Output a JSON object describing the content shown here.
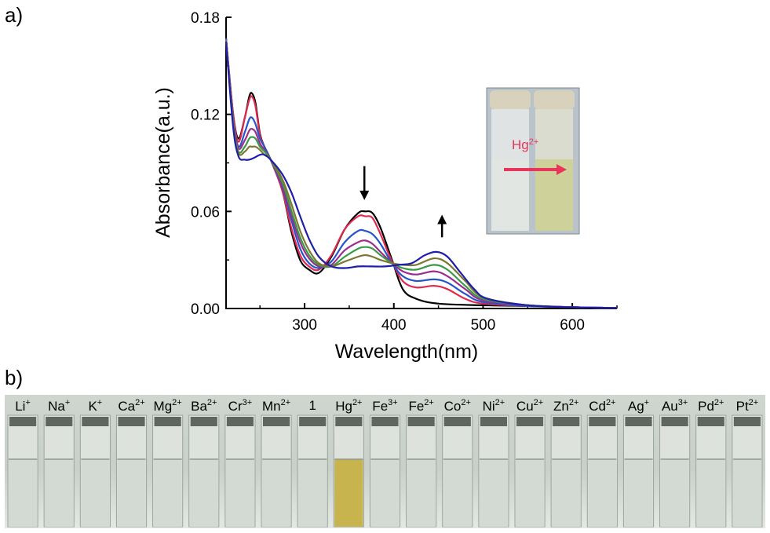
{
  "panel_a_label": "a)",
  "panel_b_label": "b)",
  "chart_data": {
    "type": "line",
    "xlabel": "Wavelength(nm)",
    "ylabel": "Absorbance(a.u.)",
    "xlim": [
      212,
      650
    ],
    "ylim": [
      0,
      0.18
    ],
    "xticks": [
      300,
      400,
      500,
      600
    ],
    "yticks": [
      0.0,
      0.06,
      0.12,
      0.18
    ],
    "ytick_labels": [
      "0.00",
      "0.06",
      "0.12",
      "0.18"
    ],
    "grid": false,
    "legend": "none",
    "series": [
      {
        "color": "#000000",
        "values": [
          [
            212,
            0.167
          ],
          [
            220,
            0.12
          ],
          [
            226,
            0.105
          ],
          [
            233,
            0.118
          ],
          [
            238,
            0.131
          ],
          [
            241,
            0.133
          ],
          [
            245,
            0.127
          ],
          [
            250,
            0.108
          ],
          [
            255,
            0.1
          ],
          [
            262,
            0.092
          ],
          [
            275,
            0.073
          ],
          [
            285,
            0.048
          ],
          [
            295,
            0.03
          ],
          [
            305,
            0.024
          ],
          [
            316,
            0.022
          ],
          [
            330,
            0.032
          ],
          [
            345,
            0.049
          ],
          [
            360,
            0.059
          ],
          [
            368,
            0.06
          ],
          [
            376,
            0.059
          ],
          [
            385,
            0.05
          ],
          [
            398,
            0.03
          ],
          [
            410,
            0.012
          ],
          [
            425,
            0.006
          ],
          [
            450,
            0.003
          ],
          [
            500,
            0.002
          ],
          [
            550,
            0.0015
          ],
          [
            600,
            0.0008
          ],
          [
            650,
            0.0003
          ]
        ]
      },
      {
        "color": "#e0294f",
        "values": [
          [
            212,
            0.167
          ],
          [
            220,
            0.12
          ],
          [
            226,
            0.103
          ],
          [
            233,
            0.118
          ],
          [
            238,
            0.129
          ],
          [
            241,
            0.131
          ],
          [
            245,
            0.125
          ],
          [
            250,
            0.107
          ],
          [
            255,
            0.1
          ],
          [
            262,
            0.092
          ],
          [
            275,
            0.073
          ],
          [
            285,
            0.05
          ],
          [
            295,
            0.033
          ],
          [
            305,
            0.026
          ],
          [
            316,
            0.024
          ],
          [
            330,
            0.033
          ],
          [
            345,
            0.049
          ],
          [
            360,
            0.057
          ],
          [
            368,
            0.057
          ],
          [
            376,
            0.056
          ],
          [
            385,
            0.046
          ],
          [
            398,
            0.029
          ],
          [
            410,
            0.017
          ],
          [
            425,
            0.013
          ],
          [
            445,
            0.014
          ],
          [
            460,
            0.012
          ],
          [
            480,
            0.006
          ],
          [
            500,
            0.003
          ],
          [
            550,
            0.0015
          ],
          [
            600,
            0.0008
          ],
          [
            650,
            0.0003
          ]
        ]
      },
      {
        "color": "#2455c8",
        "values": [
          [
            212,
            0.167
          ],
          [
            220,
            0.117
          ],
          [
            226,
            0.1
          ],
          [
            233,
            0.109
          ],
          [
            238,
            0.117
          ],
          [
            241,
            0.118
          ],
          [
            245,
            0.114
          ],
          [
            250,
            0.105
          ],
          [
            255,
            0.1
          ],
          [
            262,
            0.092
          ],
          [
            275,
            0.075
          ],
          [
            285,
            0.055
          ],
          [
            295,
            0.037
          ],
          [
            305,
            0.028
          ],
          [
            316,
            0.025
          ],
          [
            330,
            0.029
          ],
          [
            345,
            0.041
          ],
          [
            360,
            0.048
          ],
          [
            368,
            0.048
          ],
          [
            376,
            0.046
          ],
          [
            385,
            0.04
          ],
          [
            398,
            0.028
          ],
          [
            410,
            0.02
          ],
          [
            425,
            0.017
          ],
          [
            445,
            0.018
          ],
          [
            460,
            0.016
          ],
          [
            480,
            0.009
          ],
          [
            500,
            0.004
          ],
          [
            550,
            0.0015
          ],
          [
            600,
            0.0008
          ],
          [
            650,
            0.0003
          ]
        ]
      },
      {
        "color": "#9b2d8e",
        "values": [
          [
            212,
            0.166
          ],
          [
            220,
            0.116
          ],
          [
            226,
            0.099
          ],
          [
            233,
            0.104
          ],
          [
            238,
            0.11
          ],
          [
            241,
            0.111
          ],
          [
            245,
            0.109
          ],
          [
            250,
            0.102
          ],
          [
            255,
            0.098
          ],
          [
            262,
            0.092
          ],
          [
            275,
            0.076
          ],
          [
            285,
            0.058
          ],
          [
            295,
            0.041
          ],
          [
            305,
            0.031
          ],
          [
            316,
            0.026
          ],
          [
            330,
            0.027
          ],
          [
            345,
            0.036
          ],
          [
            360,
            0.041
          ],
          [
            368,
            0.042
          ],
          [
            376,
            0.04
          ],
          [
            385,
            0.035
          ],
          [
            398,
            0.028
          ],
          [
            410,
            0.023
          ],
          [
            425,
            0.021
          ],
          [
            445,
            0.023
          ],
          [
            460,
            0.02
          ],
          [
            480,
            0.012
          ],
          [
            500,
            0.005
          ],
          [
            550,
            0.002
          ],
          [
            600,
            0.0008
          ],
          [
            650,
            0.0003
          ]
        ]
      },
      {
        "color": "#3a9a48",
        "values": [
          [
            212,
            0.166
          ],
          [
            220,
            0.115
          ],
          [
            226,
            0.097
          ],
          [
            233,
            0.1
          ],
          [
            238,
            0.105
          ],
          [
            241,
            0.106
          ],
          [
            245,
            0.105
          ],
          [
            250,
            0.1
          ],
          [
            255,
            0.097
          ],
          [
            262,
            0.092
          ],
          [
            275,
            0.078
          ],
          [
            285,
            0.061
          ],
          [
            295,
            0.044
          ],
          [
            305,
            0.033
          ],
          [
            316,
            0.027
          ],
          [
            330,
            0.026
          ],
          [
            345,
            0.032
          ],
          [
            360,
            0.037
          ],
          [
            368,
            0.038
          ],
          [
            376,
            0.037
          ],
          [
            385,
            0.033
          ],
          [
            398,
            0.028
          ],
          [
            410,
            0.025
          ],
          [
            425,
            0.024
          ],
          [
            445,
            0.027
          ],
          [
            460,
            0.024
          ],
          [
            480,
            0.014
          ],
          [
            500,
            0.006
          ],
          [
            550,
            0.002
          ],
          [
            600,
            0.0008
          ],
          [
            650,
            0.0003
          ]
        ]
      },
      {
        "color": "#7c7832",
        "values": [
          [
            212,
            0.166
          ],
          [
            220,
            0.114
          ],
          [
            226,
            0.096
          ],
          [
            233,
            0.097
          ],
          [
            238,
            0.1
          ],
          [
            241,
            0.1
          ],
          [
            245,
            0.1
          ],
          [
            250,
            0.098
          ],
          [
            255,
            0.095
          ],
          [
            262,
            0.092
          ],
          [
            275,
            0.08
          ],
          [
            285,
            0.065
          ],
          [
            295,
            0.048
          ],
          [
            305,
            0.036
          ],
          [
            316,
            0.028
          ],
          [
            330,
            0.026
          ],
          [
            345,
            0.029
          ],
          [
            360,
            0.032
          ],
          [
            368,
            0.033
          ],
          [
            376,
            0.032
          ],
          [
            385,
            0.03
          ],
          [
            398,
            0.028
          ],
          [
            410,
            0.027
          ],
          [
            425,
            0.027
          ],
          [
            445,
            0.031
          ],
          [
            460,
            0.028
          ],
          [
            480,
            0.017
          ],
          [
            500,
            0.007
          ],
          [
            550,
            0.002
          ],
          [
            600,
            0.0008
          ],
          [
            650,
            0.0003
          ]
        ]
      },
      {
        "color": "#1e1ea8",
        "values": [
          [
            212,
            0.165
          ],
          [
            220,
            0.112
          ],
          [
            226,
            0.094
          ],
          [
            233,
            0.092
          ],
          [
            238,
            0.092
          ],
          [
            243,
            0.093
          ],
          [
            250,
            0.095
          ],
          [
            255,
            0.095
          ],
          [
            262,
            0.092
          ],
          [
            275,
            0.083
          ],
          [
            285,
            0.072
          ],
          [
            295,
            0.057
          ],
          [
            305,
            0.043
          ],
          [
            316,
            0.032
          ],
          [
            330,
            0.026
          ],
          [
            345,
            0.025
          ],
          [
            360,
            0.026
          ],
          [
            375,
            0.026
          ],
          [
            390,
            0.026
          ],
          [
            405,
            0.027
          ],
          [
            420,
            0.028
          ],
          [
            435,
            0.033
          ],
          [
            448,
            0.035
          ],
          [
            460,
            0.032
          ],
          [
            475,
            0.022
          ],
          [
            490,
            0.012
          ],
          [
            505,
            0.006
          ],
          [
            550,
            0.002
          ],
          [
            600,
            0.0008
          ],
          [
            650,
            0.0003
          ]
        ]
      }
    ],
    "annotations": [
      {
        "type": "arrow-down",
        "x": 367,
        "y_top": 0.088,
        "y_bottom": 0.067
      },
      {
        "type": "arrow-up",
        "x": 454,
        "y_top": 0.058,
        "y_bottom": 0.044
      }
    ]
  },
  "inset": {
    "label": "Hg",
    "label_sup": "2+",
    "label_color": "#e8355a",
    "arrow_color": "#e8355a",
    "left_vial_color": "#e2e6e2",
    "right_vial_color": "#cfd19a"
  },
  "panel_b": {
    "highlight_color": "#c7b44f",
    "vials": [
      {
        "name": "Li",
        "sup": "+"
      },
      {
        "name": "Na",
        "sup": "+"
      },
      {
        "name": "K",
        "sup": "+"
      },
      {
        "name": "Ca",
        "sup": "2+"
      },
      {
        "name": "Mg",
        "sup": "2+"
      },
      {
        "name": "Ba",
        "sup": "2+"
      },
      {
        "name": "Cr",
        "sup": "3+"
      },
      {
        "name": "Mn",
        "sup": "2+"
      },
      {
        "name": "1",
        "sup": ""
      },
      {
        "name": "Hg",
        "sup": "2+",
        "highlight": true
      },
      {
        "name": "Fe",
        "sup": "3+"
      },
      {
        "name": "Fe",
        "sup": "2+"
      },
      {
        "name": "Co",
        "sup": "2+"
      },
      {
        "name": "Ni",
        "sup": "2+"
      },
      {
        "name": "Cu",
        "sup": "2+"
      },
      {
        "name": "Zn",
        "sup": "2+"
      },
      {
        "name": "Cd",
        "sup": "2+"
      },
      {
        "name": "Ag",
        "sup": "+"
      },
      {
        "name": "Au",
        "sup": "3+"
      },
      {
        "name": "Pd",
        "sup": "2+"
      },
      {
        "name": "Pt",
        "sup": "2+"
      }
    ]
  }
}
